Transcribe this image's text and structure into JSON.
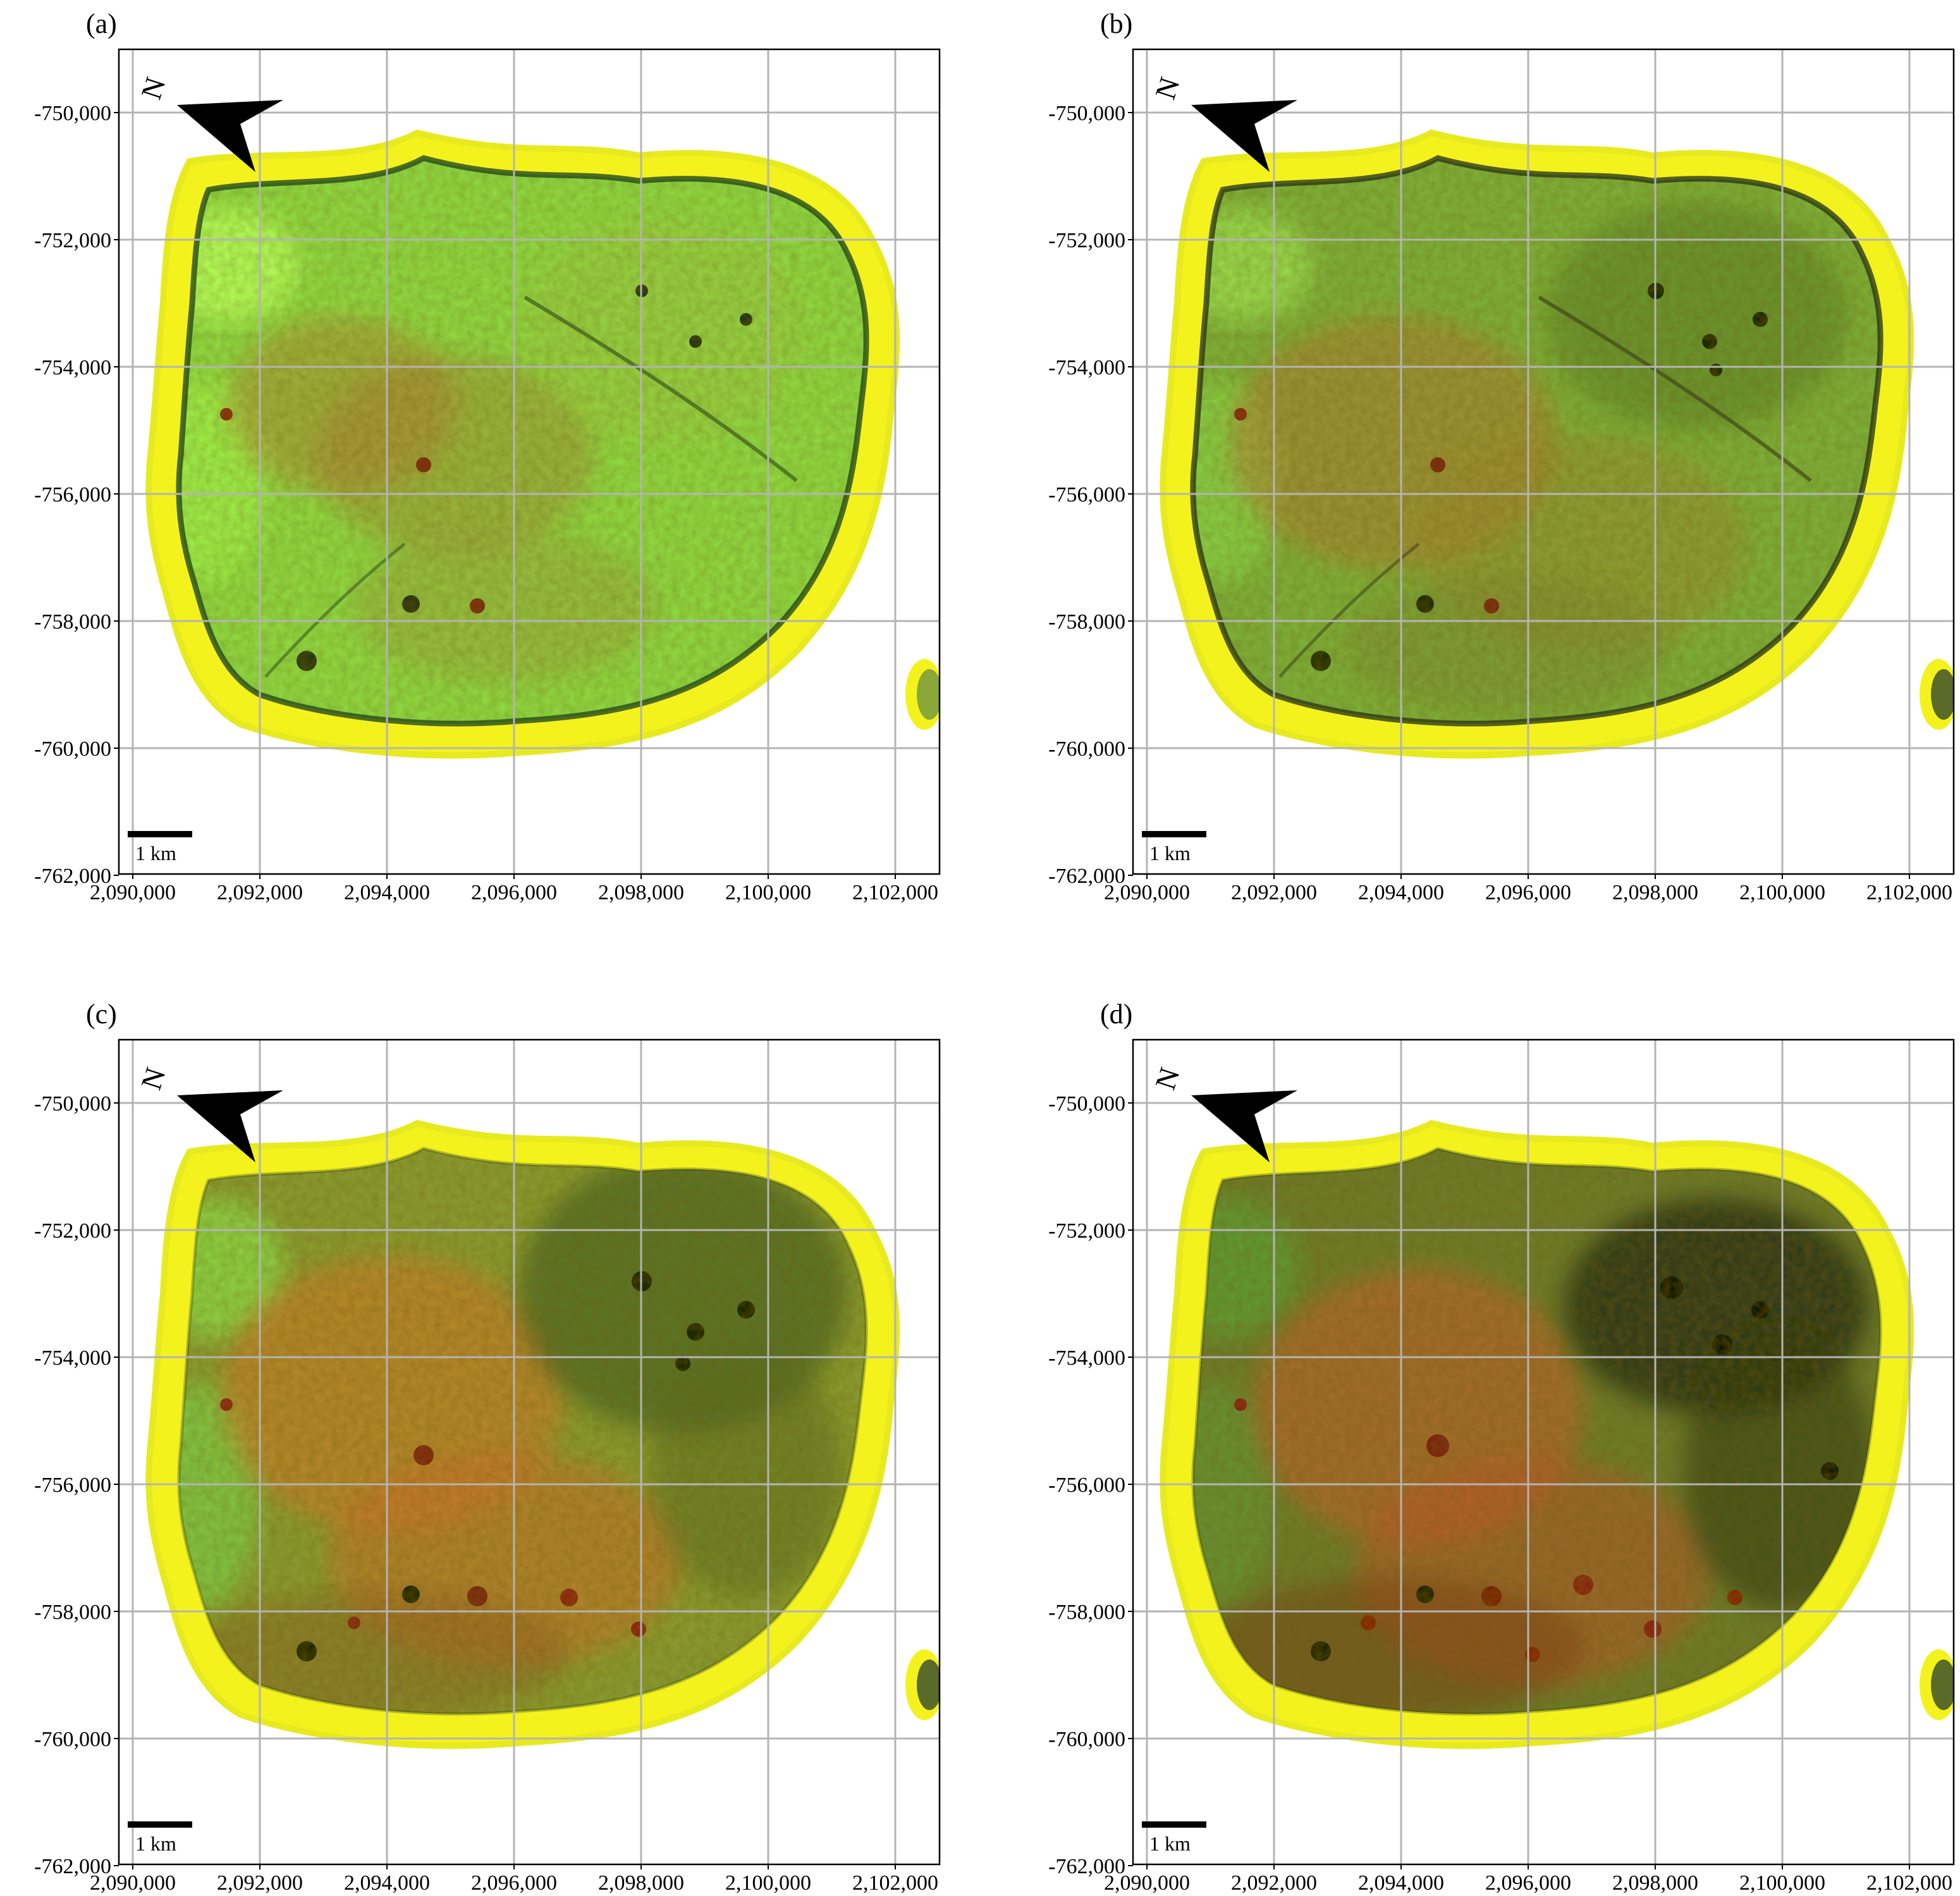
{
  "figure": {
    "panels": [
      {
        "label": "(a)",
        "scheme": "a"
      },
      {
        "label": "(b)",
        "scheme": "b"
      },
      {
        "label": "(c)",
        "scheme": "c"
      },
      {
        "label": "(d)",
        "scheme": "d"
      }
    ],
    "y_ticks": [
      "-750,000",
      "-752,000",
      "-754,000",
      "-756,000",
      "-758,000",
      "-760,000",
      "-762,000"
    ],
    "x_ticks": [
      "2,090,000",
      "2,092,000",
      "2,094,000",
      "2,096,000",
      "2,098,000",
      "2,100,000",
      "2,102,000"
    ],
    "scale_bar_label": "1 km",
    "north_arrow_letter": "N",
    "colors": {
      "yellow_edge": "#f4f21c",
      "bright_green": "#8fe83a",
      "olive": "#8a9a2a",
      "orange": "#c9842c",
      "dark_red": "#8a1c10",
      "dark_green": "#1e4a18",
      "grid": "#b4b4b4"
    }
  }
}
